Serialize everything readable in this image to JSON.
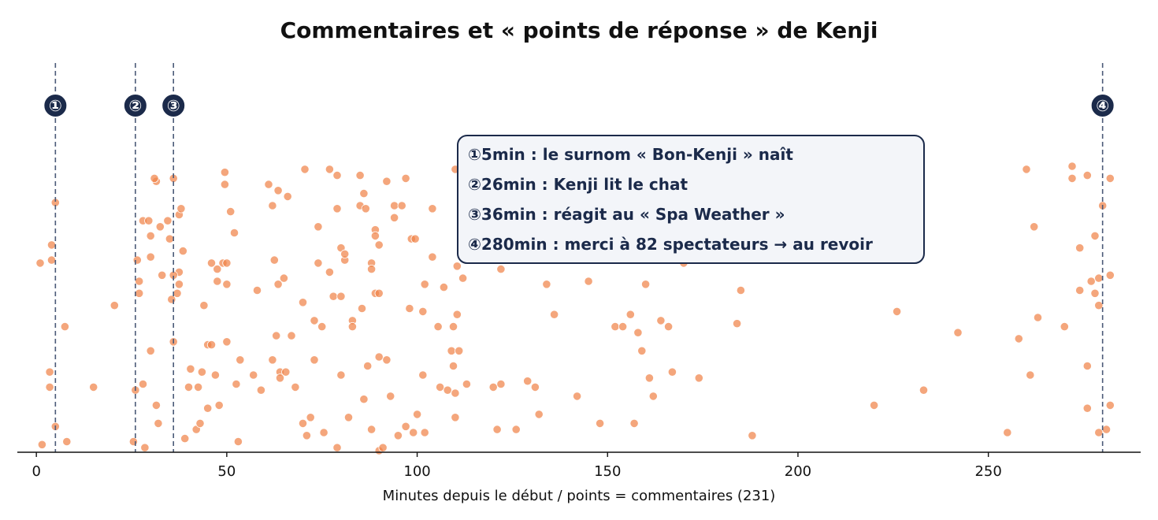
{
  "chart_data": {
    "type": "scatter",
    "title": "Commentaires et « points de réponse » de Kenji",
    "xlabel": "Minutes depuis le début / points = commentaires (231)",
    "ylabel": "",
    "xlim": [
      -5,
      290
    ],
    "ylim": [
      0,
      1
    ],
    "xticks": [
      0,
      50,
      100,
      150,
      200,
      250
    ],
    "grid": false,
    "colors": {
      "points": "#f0844a",
      "markers": "#1b2a4a",
      "lines": "#4b5a78",
      "note_bg": "#f3f5f9"
    },
    "markers": [
      {
        "label": "①",
        "x": 5
      },
      {
        "label": "②",
        "x": 26
      },
      {
        "label": "③",
        "x": 36
      },
      {
        "label": "④",
        "x": 280
      }
    ],
    "annotations": [
      "①5min : le surnom « Bon-Kenji » naît",
      "②26min : Kenji lit le chat",
      "③36min : réagit au « Spa Weather »",
      "④280min : merci à 82 spectateurs → au revoir"
    ],
    "points": [
      [
        1,
        0.62
      ],
      [
        1.5,
        0.02
      ],
      [
        3.5,
        0.26
      ],
      [
        3.5,
        0.21
      ],
      [
        4,
        0.68
      ],
      [
        4,
        0.63
      ],
      [
        5,
        0.82
      ],
      [
        5,
        0.08
      ],
      [
        7.5,
        0.41
      ],
      [
        8,
        0.03
      ],
      [
        15,
        0.21
      ],
      [
        20.5,
        0.48
      ],
      [
        25.5,
        0.03
      ],
      [
        26,
        0.2
      ],
      [
        26.5,
        0.63
      ],
      [
        27,
        0.56
      ],
      [
        27,
        0.52
      ],
      [
        28,
        0.76
      ],
      [
        28,
        0.22
      ],
      [
        28.5,
        0.01
      ],
      [
        29.5,
        0.76
      ],
      [
        30,
        0.71
      ],
      [
        30,
        0.64
      ],
      [
        30,
        0.33
      ],
      [
        31.5,
        0.15
      ],
      [
        31.5,
        0.89
      ],
      [
        32,
        0.09
      ],
      [
        32.5,
        0.74
      ],
      [
        33,
        0.58
      ],
      [
        34.5,
        0.76
      ],
      [
        35,
        0.7
      ],
      [
        35.5,
        0.5
      ],
      [
        36,
        0.9
      ],
      [
        36,
        0.36
      ],
      [
        37,
        0.52
      ],
      [
        37.5,
        0.55
      ],
      [
        37.5,
        0.59
      ],
      [
        37.5,
        0.78
      ],
      [
        38,
        0.8
      ],
      [
        38.5,
        0.66
      ],
      [
        39,
        0.04
      ],
      [
        40,
        0.21
      ],
      [
        40.5,
        0.27
      ],
      [
        42,
        0.07
      ],
      [
        42.5,
        0.21
      ],
      [
        43,
        0.09
      ],
      [
        43.5,
        0.26
      ],
      [
        45,
        0.35
      ],
      [
        46,
        0.35
      ],
      [
        46,
        0.62
      ],
      [
        47,
        0.25
      ],
      [
        47.5,
        0.56
      ],
      [
        47.5,
        0.6
      ],
      [
        48,
        0.15
      ],
      [
        49,
        0.62
      ],
      [
        49.5,
        0.88
      ],
      [
        49.5,
        0.92
      ],
      [
        50,
        0.36
      ],
      [
        50,
        0.55
      ],
      [
        50,
        0.62
      ],
      [
        51,
        0.79
      ],
      [
        52,
        0.72
      ],
      [
        52.5,
        0.22
      ],
      [
        53,
        0.03
      ],
      [
        53.5,
        0.3
      ],
      [
        57,
        0.25
      ],
      [
        59,
        0.2
      ],
      [
        61,
        0.88
      ],
      [
        62,
        0.81
      ],
      [
        62,
        0.3
      ],
      [
        62.5,
        0.63
      ],
      [
        63,
        0.38
      ],
      [
        63.5,
        0.86
      ],
      [
        63.5,
        0.55
      ],
      [
        64,
        0.26
      ],
      [
        64,
        0.24
      ],
      [
        65,
        0.57
      ],
      [
        65.5,
        0.26
      ],
      [
        66,
        0.84
      ],
      [
        67,
        0.38
      ],
      [
        68,
        0.21
      ],
      [
        70,
        0.49
      ],
      [
        70,
        0.09
      ],
      [
        70.5,
        0.93
      ],
      [
        71,
        0.05
      ],
      [
        72,
        0.11
      ],
      [
        73,
        0.43
      ],
      [
        74,
        0.62
      ],
      [
        74,
        0.74
      ],
      [
        75,
        0.41
      ],
      [
        75.5,
        0.06
      ],
      [
        77,
        0.93
      ],
      [
        77,
        0.59
      ],
      [
        78,
        0.51
      ],
      [
        79,
        0.91
      ],
      [
        79,
        0.8
      ],
      [
        79,
        0.01
      ],
      [
        80,
        0.67
      ],
      [
        80,
        0.51
      ],
      [
        80,
        0.25
      ],
      [
        81,
        0.63
      ],
      [
        81,
        0.65
      ],
      [
        82,
        0.11
      ],
      [
        83,
        0.43
      ],
      [
        83,
        0.41
      ],
      [
        85,
        0.91
      ],
      [
        85,
        0.81
      ],
      [
        85.5,
        0.47
      ],
      [
        86,
        0.17
      ],
      [
        86,
        0.85
      ],
      [
        86.5,
        0.8
      ],
      [
        87,
        0.28
      ],
      [
        88,
        0.62
      ],
      [
        88,
        0.6
      ],
      [
        88,
        0.07
      ],
      [
        89,
        0.73
      ],
      [
        89,
        0.71
      ],
      [
        89,
        0.52
      ],
      [
        90,
        0.52
      ],
      [
        90,
        0.31
      ],
      [
        90,
        0.0
      ],
      [
        91,
        0.01
      ],
      [
        92,
        0.89
      ],
      [
        92,
        0.3
      ],
      [
        93,
        0.18
      ],
      [
        94,
        0.81
      ],
      [
        94,
        0.77
      ],
      [
        95,
        0.05
      ],
      [
        96,
        0.81
      ],
      [
        97,
        0.9
      ],
      [
        97,
        0.08
      ],
      [
        98,
        0.47
      ],
      [
        98.5,
        0.7
      ],
      [
        99,
        0.06
      ],
      [
        99.5,
        0.7
      ],
      [
        100,
        0.12
      ],
      [
        101.5,
        0.46
      ],
      [
        101.5,
        0.25
      ],
      [
        102,
        0.55
      ],
      [
        104,
        0.8
      ],
      [
        105.5,
        0.41
      ],
      [
        106,
        0.21
      ],
      [
        107,
        0.54
      ],
      [
        108,
        0.2
      ],
      [
        109,
        0.33
      ],
      [
        109.5,
        0.28
      ],
      [
        109.5,
        0.41
      ],
      [
        110,
        0.11
      ],
      [
        110,
        0.19
      ],
      [
        110,
        0.93
      ],
      [
        110.5,
        0.45
      ],
      [
        110.5,
        0.61
      ],
      [
        111,
        0.33
      ],
      [
        112,
        0.57
      ],
      [
        113,
        0.22
      ],
      [
        120,
        0.21
      ],
      [
        121,
        0.07
      ],
      [
        122,
        0.22
      ],
      [
        126,
        0.07
      ],
      [
        129,
        0.23
      ],
      [
        131,
        0.21
      ],
      [
        132,
        0.12
      ],
      [
        134,
        0.55
      ],
      [
        136,
        0.45
      ],
      [
        142,
        0.18
      ],
      [
        148,
        0.09
      ],
      [
        152,
        0.41
      ],
      [
        154,
        0.41
      ],
      [
        156,
        0.45
      ],
      [
        157,
        0.09
      ],
      [
        158,
        0.39
      ],
      [
        159,
        0.33
      ],
      [
        161,
        0.24
      ],
      [
        162,
        0.18
      ],
      [
        164,
        0.43
      ],
      [
        166,
        0.41
      ],
      [
        167,
        0.26
      ],
      [
        174,
        0.24
      ],
      [
        184,
        0.42
      ],
      [
        185,
        0.53
      ],
      [
        188,
        0.05
      ],
      [
        220,
        0.15
      ],
      [
        226,
        0.46
      ],
      [
        233,
        0.2
      ],
      [
        242,
        0.39
      ],
      [
        255,
        0.06
      ],
      [
        258,
        0.37
      ],
      [
        260,
        0.93
      ],
      [
        261,
        0.25
      ],
      [
        262,
        0.74
      ],
      [
        263,
        0.44
      ],
      [
        270,
        0.41
      ],
      [
        272,
        0.9
      ],
      [
        272,
        0.94
      ],
      [
        274,
        0.53
      ],
      [
        274,
        0.67
      ],
      [
        276,
        0.14
      ],
      [
        276,
        0.91
      ],
      [
        276,
        0.28
      ],
      [
        277,
        0.56
      ],
      [
        278,
        0.52
      ],
      [
        278,
        0.71
      ],
      [
        279,
        0.48
      ],
      [
        279,
        0.57
      ],
      [
        279,
        0.06
      ],
      [
        280,
        0.81
      ],
      [
        281,
        0.07
      ],
      [
        282,
        0.9
      ],
      [
        282,
        0.15
      ],
      [
        282,
        0.58
      ],
      [
        31,
        0.9
      ],
      [
        36,
        0.58
      ],
      [
        45,
        0.14
      ],
      [
        90,
        0.68
      ],
      [
        102,
        0.06
      ],
      [
        117,
        0.72
      ],
      [
        125,
        0.83
      ],
      [
        140,
        0.66
      ],
      [
        150,
        0.78
      ],
      [
        170,
        0.62
      ],
      [
        180,
        0.75
      ],
      [
        195,
        0.66
      ],
      [
        160,
        0.55
      ],
      [
        145,
        0.56
      ],
      [
        130,
        0.9
      ],
      [
        122,
        0.6
      ],
      [
        113,
        0.82
      ],
      [
        104,
        0.64
      ],
      [
        73,
        0.3
      ],
      [
        58,
        0.53
      ],
      [
        44,
        0.48
      ]
    ]
  }
}
